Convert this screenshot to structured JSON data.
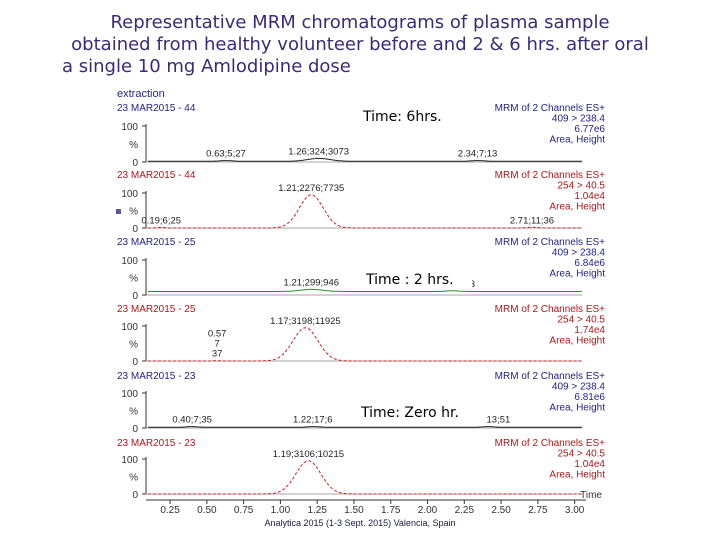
{
  "slide": {
    "title_lines": [
      "Representative MRM chromatograms of plasma sample",
      "obtained from healthy volunteer before and 2 & 6 hrs. after oral",
      "a single 10 mg Amlodipine dose"
    ],
    "section_label": "extraction",
    "footer": "Analytica 2015 (1-3 Sept. 2015) Valencia, Spain",
    "time_labels": [
      "Time: 6hrs.",
      "Time : 2 hrs.",
      "Time: Zero hr."
    ]
  },
  "colors": {
    "title": "#3a2a7a",
    "header_blue": "#23238a",
    "header_red": "#b01818",
    "trace_dark": "#202020",
    "trace_red": "#d02020",
    "trace_green": "#2a8a2a",
    "axis": "#333333"
  },
  "chart_data": {
    "type": "line",
    "xlabel": "Time",
    "xlim": [
      0.1,
      3.05
    ],
    "x_ticks": [
      "0.25",
      "0.50",
      "0.75",
      "1.00",
      "1.25",
      "1.50",
      "1.75",
      "2.00",
      "2.25",
      "2.50",
      "2.75",
      "3.00"
    ],
    "panels": [
      {
        "date_text": "23 MAR2015 - 44",
        "header_right": [
          "MRM of 2 Channels ES+",
          "409 > 238.4",
          "6.77e6",
          "Area, Height"
        ],
        "color": "trace_dark",
        "peaks": [
          {
            "x": 1.26,
            "height": 0.08,
            "width": 0.18,
            "label": "1.26;324;3073"
          },
          {
            "x": 0.63,
            "height": 0.02,
            "width": 0.1,
            "label": "0.63;5;27"
          },
          {
            "x": 2.34,
            "height": 0.02,
            "width": 0.1,
            "label": "2.34;7;13"
          }
        ],
        "baseline": 0.02,
        "show_100": true
      },
      {
        "date_text": "23 MAR2015 - 44",
        "header_right": [
          "MRM of 2 Channels ES+",
          "254 > 40.5",
          "1.04e4",
          "Area, Height"
        ],
        "color": "trace_red",
        "peaks": [
          {
            "x": 1.21,
            "height": 0.95,
            "width": 0.19,
            "label": "1.21;2276;7735"
          },
          {
            "x": 0.19,
            "height": 0.02,
            "width": 0.05,
            "label": "0.19;6;25"
          },
          {
            "x": 2.71,
            "height": 0.02,
            "width": 0.08,
            "label": "2.71;11;36"
          }
        ],
        "baseline": 0.0,
        "show_100": true
      },
      {
        "date_text": "23 MAR2015 - 25",
        "header_right": [
          "MRM of 2 Channels ES+",
          "409 > 238.4",
          "6.84e6",
          "Area, Height"
        ],
        "color": "trace_green",
        "peaks": [
          {
            "x": 1.21,
            "height": 0.06,
            "width": 0.18,
            "label": "1.21;299;946"
          },
          {
            "x": 2.17,
            "height": 0.02,
            "width": 0.1,
            "label": "2.17;15;53"
          }
        ],
        "baseline": 0.1,
        "show_100": true
      },
      {
        "date_text": "23 MAR2015 - 25",
        "header_right": [
          "MRM of 2 Channels ES+",
          "254 > 40.5",
          "1.74e4",
          "Area, Height"
        ],
        "color": "trace_red",
        "peaks": [
          {
            "x": 1.17,
            "height": 0.95,
            "width": 0.2,
            "label": "1.17;3198;11925"
          },
          {
            "x": 0.57,
            "height": 0.01,
            "width": 0.05,
            "label": "0.57\n7\n37"
          }
        ],
        "baseline": 0.0,
        "show_100": true
      },
      {
        "date_text": "23 MAR2015 - 23",
        "header_right": [
          "MRM of 2 Channels ES+",
          "409 > 238.4",
          "6.81e6",
          "Area, Height"
        ],
        "color": "trace_dark",
        "peaks": [
          {
            "x": 0.4,
            "height": 0.02,
            "width": 0.1,
            "label": "0.40;7;35"
          },
          {
            "x": 1.22,
            "height": 0.02,
            "width": 0.1,
            "label": "1.22;17;6"
          },
          {
            "x": 2.41,
            "height": 0.02,
            "width": 0.1,
            "label": "2.41;13;51"
          }
        ],
        "baseline": 0.02,
        "show_100": true
      },
      {
        "date_text": "23 MAR2015 - 23",
        "header_right": [
          "MRM of 2 Channels ES+",
          "254 > 40.5",
          "1.04e4",
          "Area, Height"
        ],
        "color": "trace_red",
        "peaks": [
          {
            "x": 1.19,
            "height": 0.95,
            "width": 0.2,
            "label": "1.19;3106;10215"
          }
        ],
        "baseline": 0.0,
        "show_100": true
      }
    ]
  }
}
